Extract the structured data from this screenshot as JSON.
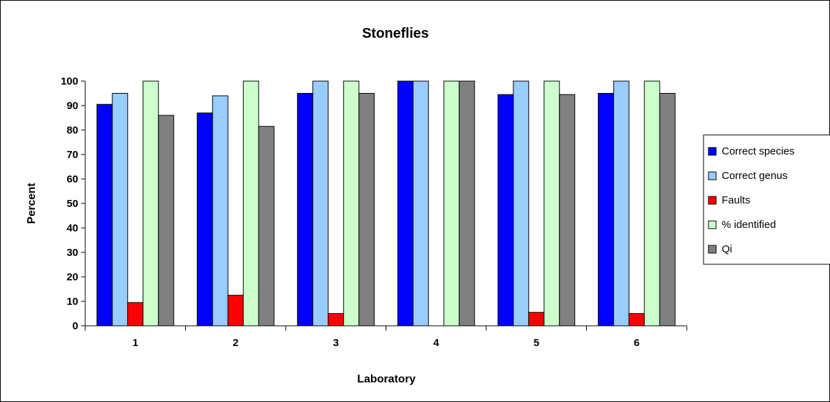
{
  "chart_data": {
    "type": "bar",
    "title": "Stoneflies",
    "xlabel": "Laboratory",
    "ylabel": "Percent",
    "categories": [
      "1",
      "2",
      "3",
      "4",
      "5",
      "6"
    ],
    "ylim": [
      0,
      100
    ],
    "yticks": [
      0,
      10,
      20,
      30,
      40,
      50,
      60,
      70,
      80,
      90,
      100
    ],
    "grid": false,
    "legend_position": "right",
    "series": [
      {
        "name": "Correct species",
        "color": "#0000FF",
        "values": [
          90.5,
          87,
          95,
          100,
          94.5,
          95
        ]
      },
      {
        "name": "Correct genus",
        "color": "#99CCFF",
        "values": [
          95,
          94,
          100,
          100,
          100,
          100
        ]
      },
      {
        "name": "Faults",
        "color": "#FF0000",
        "values": [
          9.5,
          12.5,
          5,
          0,
          5.5,
          5
        ]
      },
      {
        "name": "% identified",
        "color": "#CCFFCC",
        "values": [
          100,
          100,
          100,
          100,
          100,
          100
        ]
      },
      {
        "name": "Qi",
        "color": "#808080",
        "values": [
          86,
          81.5,
          95,
          100,
          94.5,
          95
        ]
      }
    ]
  }
}
